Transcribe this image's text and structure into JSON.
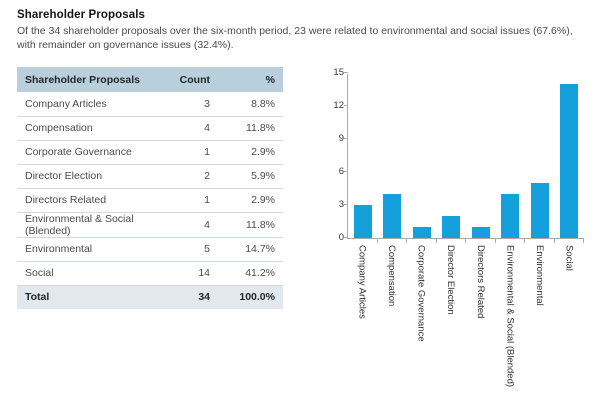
{
  "page": {
    "title": "Shareholder Proposals",
    "description": "Of the 34 shareholder proposals over the six-month period, 23 were related to environmental and social issues (67.6%), with remainder on governance issues (32.4%)."
  },
  "table": {
    "columns": [
      "Shareholder Proposals",
      "Count",
      "%"
    ],
    "rows": [
      {
        "label": "Company Articles",
        "count": "3",
        "pct": "8.8%"
      },
      {
        "label": "Compensation",
        "count": "4",
        "pct": "11.8%"
      },
      {
        "label": "Corporate Governance",
        "count": "1",
        "pct": "2.9%"
      },
      {
        "label": "Director Election",
        "count": "2",
        "pct": "5.9%"
      },
      {
        "label": "Directors Related",
        "count": "1",
        "pct": "2.9%"
      },
      {
        "label": "Environmental & Social (Blended)",
        "count": "4",
        "pct": "11.8%"
      },
      {
        "label": "Environmental",
        "count": "5",
        "pct": "14.7%"
      },
      {
        "label": "Social",
        "count": "14",
        "pct": "41.2%"
      }
    ],
    "total": {
      "label": "Total",
      "count": "34",
      "pct": "100.0%"
    }
  },
  "chart_data": {
    "type": "bar",
    "categories": [
      "Company Articles",
      "Compensation",
      "Corporate Governance",
      "Director Election",
      "Directors Related",
      "Environmental & Social (Blended)",
      "Environmental",
      "Social"
    ],
    "values": [
      3,
      4,
      1,
      2,
      1,
      4,
      5,
      14
    ],
    "title": "",
    "xlabel": "",
    "ylabel": "",
    "ylim": [
      0,
      15
    ],
    "yticks": [
      0,
      3,
      6,
      9,
      12,
      15
    ],
    "grid": false,
    "legend": "none",
    "bar_color": "#14a0da"
  },
  "colors": {
    "bar": "#14a0da",
    "table_header_bg": "#b9cfdc",
    "table_total_bg": "#e3e8ef",
    "row_divider": "#cfdae1",
    "axis": "#a8aaad",
    "body_text": "#4a4a4a",
    "page_bg": "#ffffff"
  }
}
